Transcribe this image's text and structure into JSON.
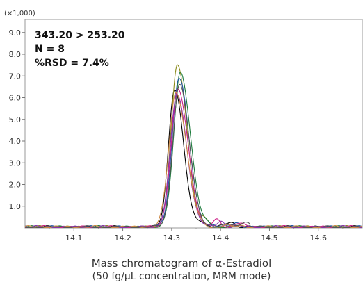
{
  "chart_data": {
    "type": "line",
    "y_multiplier_label": "(×1,000)",
    "xlim": [
      14.0,
      14.69
    ],
    "ylim": [
      0,
      9.6
    ],
    "x_ticks": [
      "14.1",
      "14.2",
      "14.3",
      "14.4",
      "14.5",
      "14.6"
    ],
    "y_ticks": [
      "1.0",
      "2.0",
      "3.0",
      "4.0",
      "5.0",
      "6.0",
      "7.0",
      "8.0",
      "9.0"
    ],
    "annotations": [
      "343.20 > 253.20",
      "N = 8",
      "%RSD = 7.4%"
    ],
    "caption_lines": [
      "Mass chromatogram of α-Estradiol",
      "(50 fg/μL concentration, MRM mode)"
    ],
    "series": [
      {
        "color": "#000000",
        "apex_x": 14.306,
        "apex_y": 6.35,
        "sigma": 0.0145
      },
      {
        "color": "#8b8b1a",
        "apex_x": 14.312,
        "apex_y": 7.45,
        "sigma": 0.0155
      },
      {
        "color": "#1a7a3a",
        "apex_x": 14.318,
        "apex_y": 7.15,
        "sigma": 0.016
      },
      {
        "color": "#2255aa",
        "apex_x": 14.315,
        "apex_y": 6.9,
        "sigma": 0.016
      },
      {
        "color": "#cc2288",
        "apex_x": 14.313,
        "apex_y": 6.3,
        "sigma": 0.0165
      },
      {
        "color": "#8833aa",
        "apex_x": 14.311,
        "apex_y": 6.1,
        "sigma": 0.016
      },
      {
        "color": "#cc8844",
        "apex_x": 14.309,
        "apex_y": 6.2,
        "sigma": 0.017
      },
      {
        "color": "#555555",
        "apex_x": 14.316,
        "apex_y": 6.55,
        "sigma": 0.016
      }
    ]
  }
}
